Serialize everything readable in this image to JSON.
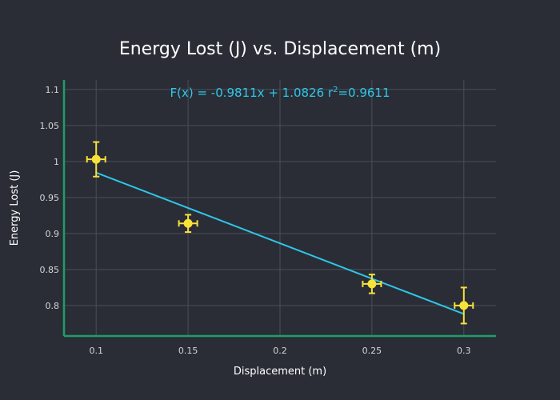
{
  "chart_data": {
    "type": "scatter",
    "title": "Energy Lost (J) vs. Displacement (m)",
    "xlabel": "Displacement (m)",
    "ylabel": "Energy Lost (J)",
    "xlim": [
      0.0825,
      0.3175
    ],
    "ylim": [
      0.7577,
      1.1131
    ],
    "x_ticks": [
      0.1,
      0.15,
      0.2,
      0.25,
      0.3
    ],
    "x_tick_labels": [
      "0.1",
      "0.15",
      "0.2",
      "0.25",
      "0.3"
    ],
    "y_ticks": [
      0.8,
      0.85,
      0.9,
      0.95,
      1,
      1.05,
      1.1
    ],
    "y_tick_labels": [
      "0.8",
      "0.85",
      "0.9",
      "0.95",
      "1",
      "1.05",
      "1.1"
    ],
    "grid": true,
    "legend": "none",
    "points": {
      "x": [
        0.1,
        0.15,
        0.25,
        0.3
      ],
      "y": [
        1.003,
        0.914,
        0.83,
        0.8
      ],
      "x_err": [
        0.005,
        0.005,
        0.005,
        0.005
      ],
      "y_err": [
        0.024,
        0.012,
        0.013,
        0.025
      ]
    },
    "fit": {
      "slope": -0.9811,
      "intercept": 1.0826,
      "x_range": [
        0.1,
        0.3
      ],
      "annotation_prefix": "F(x) = -0.9811x + 1.0826  r",
      "annotation_sup": "2",
      "annotation_suffix": "=0.9611"
    },
    "colors": {
      "background": "#2a2d36",
      "grid": "#4a4e58",
      "axis": "#1f9d6a",
      "text": "#ffffff",
      "tick_text": "#d6d6d6",
      "marker": "#f7e239",
      "fit_line": "#2ec7e8"
    }
  }
}
